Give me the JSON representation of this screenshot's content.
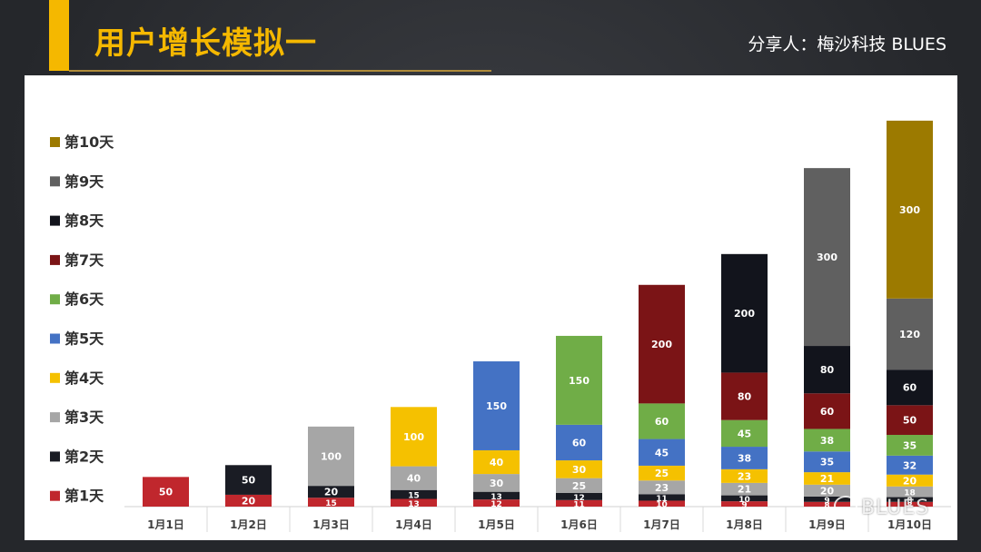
{
  "header": {
    "title": "用户增长模拟一",
    "author": "分享人：梅沙科技  BLUES"
  },
  "watermark": "BLUES",
  "chart_data": {
    "type": "bar",
    "stacked": true,
    "categories": [
      "1月1日",
      "1月2日",
      "1月3日",
      "1月4日",
      "1月5日",
      "1月6日",
      "1月7日",
      "1月8日",
      "1月9日",
      "1月10日"
    ],
    "series": [
      {
        "name": "第1天",
        "color": "#c0272d",
        "values": [
          50,
          20,
          15,
          13,
          12,
          11,
          10,
          9,
          8,
          8
        ]
      },
      {
        "name": "第2天",
        "color": "#1a1c24",
        "values": [
          null,
          50,
          20,
          15,
          13,
          12,
          11,
          10,
          9,
          8
        ]
      },
      {
        "name": "第3天",
        "color": "#a6a6a6",
        "values": [
          null,
          null,
          100,
          40,
          30,
          25,
          23,
          21,
          20,
          18
        ]
      },
      {
        "name": "第4天",
        "color": "#f5c100",
        "values": [
          null,
          null,
          null,
          100,
          40,
          30,
          25,
          23,
          21,
          20
        ]
      },
      {
        "name": "第5天",
        "color": "#4472c4",
        "values": [
          null,
          null,
          null,
          null,
          150,
          60,
          45,
          38,
          35,
          32
        ]
      },
      {
        "name": "第6天",
        "color": "#70ad47",
        "values": [
          null,
          null,
          null,
          null,
          null,
          150,
          60,
          45,
          38,
          35
        ]
      },
      {
        "name": "第7天",
        "color": "#7b1416",
        "values": [
          null,
          null,
          null,
          null,
          null,
          null,
          200,
          80,
          60,
          50
        ]
      },
      {
        "name": "第8天",
        "color": "#12141c",
        "values": [
          null,
          null,
          null,
          null,
          null,
          null,
          null,
          200,
          80,
          60
        ]
      },
      {
        "name": "第9天",
        "color": "#606060",
        "values": [
          null,
          null,
          null,
          null,
          null,
          null,
          null,
          null,
          300,
          120
        ]
      },
      {
        "name": "第10天",
        "color": "#9c7a00",
        "values": [
          null,
          null,
          null,
          null,
          null,
          null,
          null,
          null,
          null,
          300
        ]
      }
    ],
    "legend_position": "left",
    "grid": false
  }
}
